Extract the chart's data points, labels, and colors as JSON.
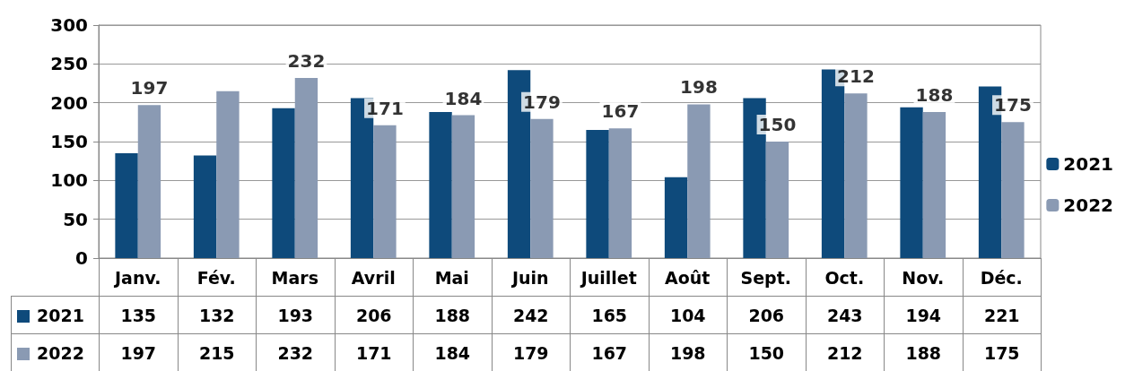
{
  "chart_data": {
    "type": "bar",
    "categories": [
      "Janv.",
      "Fév.",
      "Mars",
      "Avril",
      "Mai",
      "Juin",
      "Juillet",
      "Août",
      "Sept.",
      "Oct.",
      "Nov.",
      "Déc."
    ],
    "series": [
      {
        "name": "2021",
        "color": "#0e4a7b",
        "values": [
          135,
          132,
          193,
          206,
          188,
          242,
          165,
          104,
          206,
          243,
          194,
          221
        ]
      },
      {
        "name": "2022",
        "color": "#8a9ab3",
        "values": [
          197,
          215,
          232,
          171,
          184,
          179,
          167,
          198,
          150,
          212,
          188,
          175
        ]
      }
    ],
    "annotations": [
      {
        "text": "197",
        "x": "Janv.",
        "y": 197
      },
      {
        "text": "232",
        "x": "Mars",
        "y": 232
      },
      {
        "text": "171",
        "x": "Avril",
        "y": 171
      },
      {
        "text": "184",
        "x": "Mai",
        "y": 184
      },
      {
        "text": "179",
        "x": "Juin",
        "y": 179
      },
      {
        "text": "167",
        "x": "Juillet",
        "y": 167
      },
      {
        "text": "198",
        "x": "Août",
        "y": 198
      },
      {
        "text": "150",
        "x": "Sept.",
        "y": 150
      },
      {
        "text": "212",
        "x": "Oct.",
        "y": 212
      },
      {
        "text": "188",
        "x": "Nov.",
        "y": 188
      },
      {
        "text": "175",
        "x": "Déc.",
        "y": 175
      }
    ],
    "ylim": [
      0,
      300
    ],
    "yticks": [
      0,
      50,
      100,
      150,
      200,
      250,
      300
    ],
    "grid": "y",
    "legend": "right",
    "data_labels": true
  }
}
